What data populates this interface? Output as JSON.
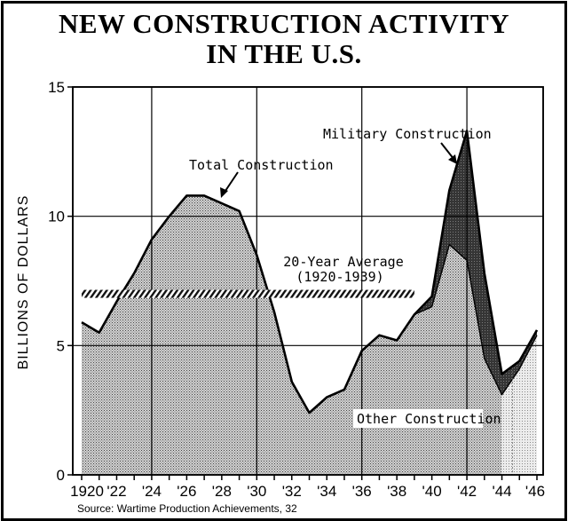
{
  "title_line1": "NEW CONSTRUCTION ACTIVITY",
  "title_line2": "IN THE U.S.",
  "chart_data": {
    "type": "area",
    "title": "NEW CONSTRUCTION ACTIVITY IN THE U.S.",
    "xlabel": "",
    "ylabel": "BILLIONS OF DOLLARS",
    "xlim": [
      1920,
      1946
    ],
    "ylim": [
      0,
      15
    ],
    "grid": true,
    "x_tick_labels": [
      "1920",
      "'22",
      "'24",
      "'26",
      "'28",
      "'30",
      "'32",
      "'34",
      "'36",
      "'38",
      "'40",
      "'42",
      "'44",
      "'46"
    ],
    "x_tick_values": [
      1920,
      1922,
      1924,
      1926,
      1928,
      1930,
      1932,
      1934,
      1936,
      1938,
      1940,
      1942,
      1944,
      1946
    ],
    "y_tick_values": [
      0,
      5,
      10,
      15
    ],
    "x": [
      1920,
      1921,
      1922,
      1923,
      1924,
      1925,
      1926,
      1927,
      1928,
      1929,
      1930,
      1931,
      1932,
      1933,
      1934,
      1935,
      1936,
      1937,
      1938,
      1939,
      1940,
      1941,
      1942,
      1943,
      1944,
      1945,
      1946
    ],
    "series": [
      {
        "name": "Total Construction",
        "values": [
          5.9,
          5.5,
          6.7,
          7.8,
          9.1,
          10.0,
          10.8,
          10.8,
          10.5,
          10.2,
          8.5,
          6.3,
          3.6,
          2.4,
          3.0,
          3.3,
          4.8,
          5.4,
          5.2,
          6.2,
          6.9,
          11.0,
          13.3,
          7.8,
          3.9,
          4.4,
          5.6
        ]
      },
      {
        "name": "Other Construction",
        "values": [
          5.9,
          5.5,
          6.7,
          7.8,
          9.1,
          10.0,
          10.8,
          10.8,
          10.5,
          10.2,
          8.5,
          6.3,
          3.6,
          2.4,
          3.0,
          3.3,
          4.8,
          5.4,
          5.2,
          6.2,
          6.5,
          8.9,
          8.3,
          4.5,
          3.1,
          4.1,
          5.4
        ]
      }
    ],
    "reference_line": {
      "label_line1": "20-Year Average",
      "label_line2": "(1920-1939)",
      "value": 7.0,
      "x_range": [
        1920,
        1939
      ]
    },
    "annotations": {
      "total_label": "Total Construction",
      "military_label": "Military Construction",
      "other_label": "Other Construction"
    },
    "source": "Source: Wartime Production Achievements, 32"
  }
}
